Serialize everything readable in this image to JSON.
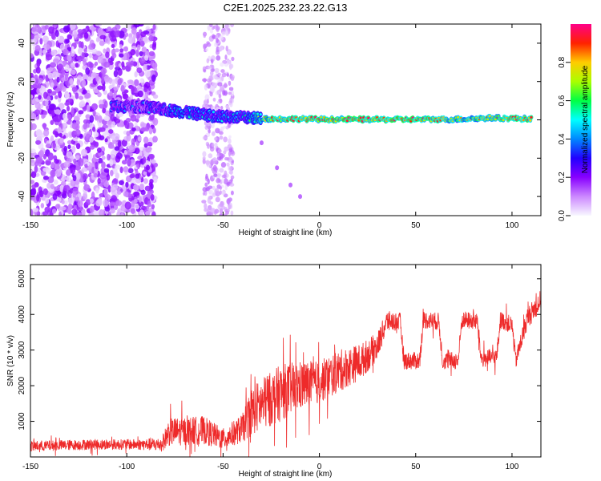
{
  "title": "C2E1.2025.232.23.22.G13",
  "colors": {
    "axis": "#000000",
    "snr_line": "#ee2a2a",
    "colorbar_stops": [
      "#f8f8ff",
      "#cc88ff",
      "#8800ff",
      "#2200ff",
      "#0088ff",
      "#00ffff",
      "#00ff44",
      "#aaff00",
      "#ffcc00",
      "#ff2200",
      "#ff0088"
    ]
  },
  "chart_data": [
    {
      "type": "heatmap",
      "name": "spectrogram",
      "xlabel": "Height of straight line (km)",
      "ylabel": "Frequency (Hz)",
      "xlim": [
        -150,
        115
      ],
      "ylim": [
        -50,
        50
      ],
      "xticks": [
        -150,
        -100,
        -50,
        0,
        50,
        100
      ],
      "yticks": [
        -40,
        -20,
        0,
        20,
        40
      ],
      "xtick_labels": [
        "-150",
        "-100",
        "-50",
        "0",
        "50",
        "100"
      ],
      "ytick_labels": [
        "-40",
        "-20",
        "0",
        "20",
        "40"
      ],
      "colorbar": {
        "label": "Normalized spectral amplitude",
        "range": [
          0,
          1
        ],
        "ticks": [
          0.0,
          0.2,
          0.4,
          0.6,
          0.8
        ],
        "tick_labels": [
          "0.0",
          "0.2",
          "0.4",
          "0.6",
          "0.8"
        ]
      },
      "description_points": {
        "noise_region_km": [
          -150,
          -85
        ],
        "secondary_noise_km": [
          -60,
          -45
        ],
        "signal_track": [
          {
            "x": -108,
            "freq": 7,
            "amp": 0.35
          },
          {
            "x": -95,
            "freq": 7,
            "amp": 0.3
          },
          {
            "x": -85,
            "freq": 6,
            "amp": 0.35
          },
          {
            "x": -70,
            "freq": 4,
            "amp": 0.45
          },
          {
            "x": -55,
            "freq": 2,
            "amp": 0.4
          },
          {
            "x": -45,
            "freq": 1.5,
            "amp": 0.45
          },
          {
            "x": -35,
            "freq": 1,
            "amp": 0.5
          },
          {
            "x": -25,
            "freq": 0.5,
            "amp": 0.8
          },
          {
            "x": -10,
            "freq": 0.5,
            "amp": 0.85
          },
          {
            "x": 0,
            "freq": 0.3,
            "amp": 0.85
          },
          {
            "x": 20,
            "freq": 0.2,
            "amp": 0.9
          },
          {
            "x": 50,
            "freq": 0.2,
            "amp": 0.9
          },
          {
            "x": 70,
            "freq": 0.3,
            "amp": 0.7
          },
          {
            "x": 90,
            "freq": 1,
            "amp": 0.8
          },
          {
            "x": 110,
            "freq": 0.5,
            "amp": 0.85
          }
        ],
        "faint_tail": [
          {
            "x": -30,
            "freq": -12
          },
          {
            "x": -22,
            "freq": -25
          },
          {
            "x": -15,
            "freq": -34
          },
          {
            "x": -10,
            "freq": -40
          }
        ]
      }
    },
    {
      "type": "line",
      "name": "snr",
      "xlabel": "Height of straight line (km)",
      "ylabel": "SNR (10 * v/v)",
      "xlim": [
        -150,
        115
      ],
      "ylim": [
        0,
        5400
      ],
      "xticks": [
        -150,
        -100,
        -50,
        0,
        50,
        100
      ],
      "yticks": [
        1000,
        2000,
        3000,
        4000,
        5000
      ],
      "xtick_labels": [
        "-150",
        "-100",
        "-50",
        "0",
        "50",
        "100"
      ],
      "ytick_labels": [
        "1000",
        "2000",
        "3000",
        "4000",
        "5000"
      ],
      "series": [
        {
          "name": "SNR",
          "envelope": [
            {
              "x": -150,
              "y": 300,
              "noise": 150
            },
            {
              "x": -120,
              "y": 350,
              "noise": 150
            },
            {
              "x": -95,
              "y": 350,
              "noise": 150
            },
            {
              "x": -82,
              "y": 350,
              "noise": 200
            },
            {
              "x": -78,
              "y": 700,
              "noise": 400
            },
            {
              "x": -60,
              "y": 750,
              "noise": 400
            },
            {
              "x": -50,
              "y": 500,
              "noise": 300
            },
            {
              "x": -40,
              "y": 800,
              "noise": 400
            },
            {
              "x": -35,
              "y": 1300,
              "noise": 700
            },
            {
              "x": -20,
              "y": 1800,
              "noise": 800
            },
            {
              "x": -10,
              "y": 2000,
              "noise": 700
            },
            {
              "x": 0,
              "y": 2100,
              "noise": 600
            },
            {
              "x": 10,
              "y": 2400,
              "noise": 600
            },
            {
              "x": 22,
              "y": 2700,
              "noise": 500
            },
            {
              "x": 30,
              "y": 3100,
              "noise": 400
            },
            {
              "x": 35,
              "y": 3800,
              "noise": 300
            },
            {
              "x": 42,
              "y": 3800,
              "noise": 250
            },
            {
              "x": 44,
              "y": 2700,
              "noise": 250
            },
            {
              "x": 52,
              "y": 2700,
              "noise": 250
            },
            {
              "x": 54,
              "y": 3850,
              "noise": 250
            },
            {
              "x": 62,
              "y": 3800,
              "noise": 250
            },
            {
              "x": 64,
              "y": 2700,
              "noise": 250
            },
            {
              "x": 72,
              "y": 2700,
              "noise": 250
            },
            {
              "x": 74,
              "y": 3850,
              "noise": 250
            },
            {
              "x": 82,
              "y": 3800,
              "noise": 250
            },
            {
              "x": 84,
              "y": 2750,
              "noise": 250
            },
            {
              "x": 92,
              "y": 2800,
              "noise": 250
            },
            {
              "x": 94,
              "y": 3850,
              "noise": 250
            },
            {
              "x": 100,
              "y": 3700,
              "noise": 250
            },
            {
              "x": 102,
              "y": 2700,
              "noise": 250
            },
            {
              "x": 108,
              "y": 3900,
              "noise": 300
            },
            {
              "x": 115,
              "y": 4400,
              "noise": 300
            }
          ]
        }
      ]
    }
  ]
}
